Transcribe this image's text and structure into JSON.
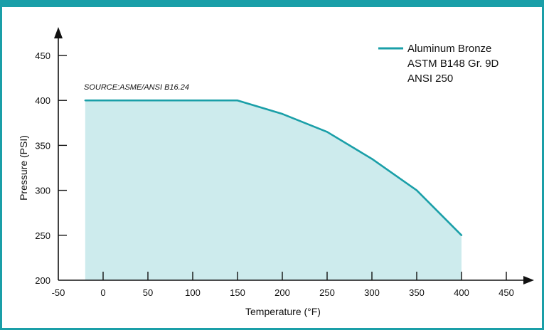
{
  "colors": {
    "frame": "#1a9fa8",
    "line": "#1a9fa8",
    "fill": "#cdebed"
  },
  "chart_data": {
    "type": "area",
    "title": "",
    "xlabel": "Temperature (°F)",
    "ylabel": "Pressure (PSI)",
    "xlim": [
      -50,
      450
    ],
    "ylim": [
      200,
      450
    ],
    "x_ticks": [
      -50,
      0,
      50,
      100,
      150,
      200,
      250,
      300,
      350,
      400,
      450
    ],
    "y_ticks": [
      200,
      250,
      300,
      350,
      400,
      450
    ],
    "annotation": "SOURCE:ASME/ANSI B16.24",
    "legend": {
      "lines": [
        "Aluminum Bronze",
        "ASTM B148 Gr. 9D",
        "ANSI 250"
      ],
      "position": "top-right"
    },
    "series": [
      {
        "x": [
          -20,
          150,
          200,
          250,
          300,
          350,
          400
        ],
        "y": [
          400,
          400,
          385,
          365,
          335,
          300,
          250
        ]
      }
    ]
  }
}
